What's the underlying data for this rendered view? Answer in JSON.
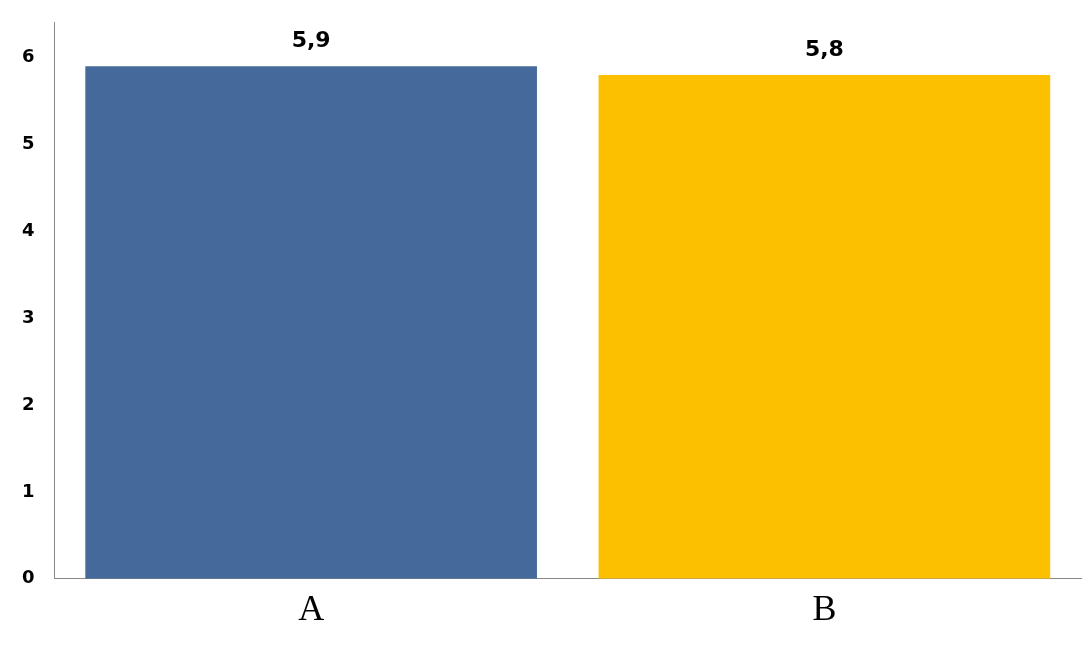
{
  "chart_data": {
    "type": "bar",
    "categories": [
      "A",
      "B"
    ],
    "values": [
      5.9,
      5.8
    ],
    "colors": [
      "#44699a",
      "#fcc000"
    ],
    "value_labels": [
      "5,9",
      "5,8"
    ],
    "ylim": [
      0,
      6.4
    ],
    "yticks": [
      0,
      1,
      2,
      3,
      4,
      5,
      6
    ],
    "grid": false,
    "legend": false
  }
}
